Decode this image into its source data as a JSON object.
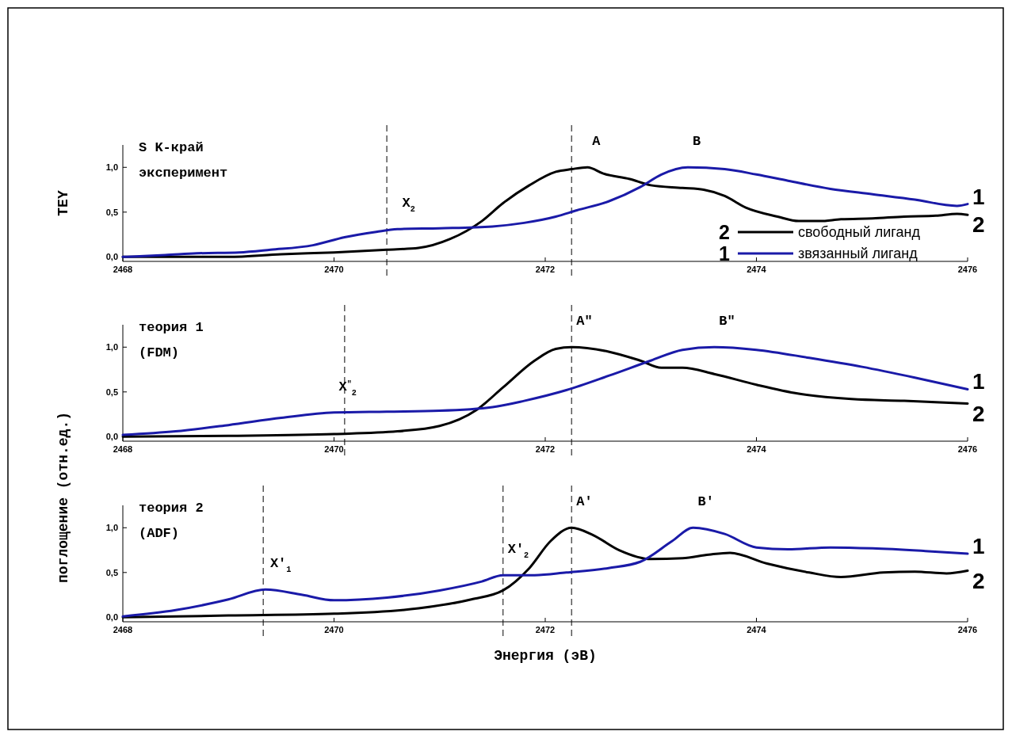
{
  "chart_data": [
    {
      "type": "line",
      "title": "S K-край",
      "subtitle": "эксперимент",
      "ylabel": "TEY",
      "xlim": [
        2468,
        2476
      ],
      "xticks": [
        2468,
        2470,
        2472,
        2474,
        2476
      ],
      "ylim": [
        -0.05,
        1.25
      ],
      "yticks": [
        {
          "value": 0,
          "label": "0,0"
        },
        {
          "value": 0.5,
          "label": "0,5"
        },
        {
          "value": 1,
          "label": "1,0"
        }
      ],
      "legend": "bottom right",
      "line_style": "solid",
      "series": [
        {
          "name": "свободный лиганд",
          "color": "#000000",
          "x": [
            2468,
            2469,
            2469.5,
            2470,
            2470.5,
            2470.8,
            2471.1,
            2471.4,
            2471.6,
            2471.85,
            2472.1,
            2472.25,
            2472.4,
            2472.55,
            2472.8,
            2473,
            2473.3,
            2473.5,
            2473.7,
            2473.9,
            2474.2,
            2474.4,
            2474.6,
            2474.8,
            2475.1,
            2475.4,
            2475.7,
            2475.9,
            2476
          ],
          "values": [
            0,
            0,
            0.03,
            0.05,
            0.08,
            0.1,
            0.2,
            0.4,
            0.6,
            0.8,
            0.95,
            0.98,
            1,
            0.93,
            0.87,
            0.8,
            0.77,
            0.75,
            0.68,
            0.55,
            0.45,
            0.4,
            0.4,
            0.42,
            0.43,
            0.45,
            0.46,
            0.48,
            0.47
          ]
        },
        {
          "name": "звязанный лиганд",
          "color": "#1a1aa8",
          "x": [
            2468,
            2468.4,
            2468.7,
            2469.1,
            2469.4,
            2469.8,
            2470.1,
            2470.4,
            2470.6,
            2471,
            2471.5,
            2471.8,
            2472.1,
            2472.3,
            2472.6,
            2472.9,
            2473.1,
            2473.35,
            2473.7,
            2474,
            2474.3,
            2474.7,
            2475.1,
            2475.5,
            2475.9,
            2476
          ],
          "values": [
            0,
            0.02,
            0.04,
            0.05,
            0.08,
            0.13,
            0.22,
            0.28,
            0.31,
            0.32,
            0.34,
            0.38,
            0.45,
            0.52,
            0.62,
            0.78,
            0.92,
            1,
            0.98,
            0.92,
            0.85,
            0.76,
            0.7,
            0.64,
            0.57,
            0.59
          ]
        }
      ],
      "ref_lines": [
        {
          "axis": "x",
          "value": 2472.25,
          "color": "#555555",
          "line_style": "dashed"
        },
        {
          "axis": "x",
          "value": 2470.5,
          "color": "#555555",
          "line_style": "dashed"
        }
      ],
      "annotations": [
        "2",
        "1",
        {
          "text": "A",
          "x": 2472.4,
          "y": 1
        },
        {
          "text": "B",
          "x": 2473.35,
          "y": 1
        },
        {
          "text": "X$_{2}$",
          "x": 2470.6,
          "y": 0.31
        },
        {
          "text": "1",
          "x": 2476,
          "y": 0.59
        },
        {
          "text": "2",
          "x": 2476,
          "y": 0.47
        }
      ]
    },
    {
      "type": "line",
      "title": "теория 1",
      "subtitle": "(FDM)",
      "xlim": [
        2468,
        2476
      ],
      "xticks": [
        2468,
        2470,
        2472,
        2474,
        2476
      ],
      "ylim": [
        -0.05,
        1.25
      ],
      "yticks": [
        {
          "value": 0,
          "label": "0,0"
        },
        {
          "value": 0.5,
          "label": "0,5"
        },
        {
          "value": 1,
          "label": "1,0"
        }
      ],
      "line_style": "solid",
      "series": [
        {
          "color": "#000000",
          "x": [
            2468,
            2469,
            2470,
            2470.6,
            2471,
            2471.35,
            2471.6,
            2471.9,
            2472.1,
            2472.25,
            2472.6,
            2472.9,
            2473.1,
            2473.3,
            2473.6,
            2474,
            2474.4,
            2474.9,
            2475.4,
            2476
          ],
          "values": [
            0,
            0.01,
            0.03,
            0.06,
            0.12,
            0.3,
            0.55,
            0.85,
            0.98,
            1,
            0.95,
            0.85,
            0.77,
            0.77,
            0.7,
            0.58,
            0.48,
            0.42,
            0.4,
            0.37
          ]
        },
        {
          "color": "#1a1aa8",
          "x": [
            2468,
            2468.5,
            2469,
            2469.5,
            2470,
            2470.5,
            2471,
            2471.5,
            2471.8,
            2472.2,
            2472.6,
            2473,
            2473.3,
            2473.6,
            2474,
            2474.5,
            2475,
            2475.5,
            2476
          ],
          "values": [
            0.02,
            0.06,
            0.13,
            0.21,
            0.27,
            0.28,
            0.29,
            0.33,
            0.4,
            0.52,
            0.68,
            0.85,
            0.97,
            1,
            0.97,
            0.88,
            0.78,
            0.66,
            0.53
          ]
        }
      ],
      "ref_lines": [
        {
          "axis": "x",
          "value": 2472.25,
          "color": "#555555",
          "line_style": "dashed"
        },
        {
          "axis": "x",
          "value": 2470.1,
          "color": "#555555",
          "line_style": "dashed"
        }
      ],
      "annotations": [
        {
          "text": "A\"",
          "x": 2472.25,
          "y": 1
        },
        {
          "text": "B\"",
          "x": 2473.6,
          "y": 1
        },
        {
          "text": "X$^{\"}$$_{2}$",
          "x": 2470,
          "y": 0.27
        },
        {
          "text": "1",
          "x": 2476,
          "y": 0.53
        },
        {
          "text": "2",
          "x": 2476,
          "y": 0.37
        }
      ]
    },
    {
      "type": "line",
      "title": "теория 2",
      "subtitle": "(ADF)",
      "xlabel": "Энергия (эВ)",
      "ylabel": "поглощение (отн.ед.)",
      "xlim": [
        2468,
        2476
      ],
      "xticks": [
        2468,
        2470,
        2472,
        2474,
        2476
      ],
      "ylim": [
        -0.05,
        1.25
      ],
      "yticks": [
        {
          "value": 0,
          "label": "0,0"
        },
        {
          "value": 0.5,
          "label": "0,5"
        },
        {
          "value": 1,
          "label": "1,0"
        }
      ],
      "line_style": "solid",
      "series": [
        {
          "color": "#000000",
          "x": [
            2468,
            2469,
            2470,
            2470.8,
            2471.3,
            2471.6,
            2471.85,
            2472.05,
            2472.25,
            2472.45,
            2472.7,
            2473,
            2473.3,
            2473.55,
            2473.75,
            2474.1,
            2474.5,
            2474.8,
            2475.2,
            2475.5,
            2475.8,
            2476
          ],
          "values": [
            0,
            0.02,
            0.04,
            0.1,
            0.2,
            0.3,
            0.55,
            0.85,
            1,
            0.92,
            0.75,
            0.65,
            0.66,
            0.7,
            0.72,
            0.6,
            0.5,
            0.45,
            0.5,
            0.51,
            0.49,
            0.52
          ]
        },
        {
          "color": "#1a1aa8",
          "x": [
            2468,
            2468.5,
            2469,
            2469.35,
            2469.7,
            2470,
            2470.5,
            2471,
            2471.4,
            2471.6,
            2471.9,
            2472.2,
            2472.6,
            2472.9,
            2473.2,
            2473.4,
            2473.7,
            2474,
            2474.3,
            2474.7,
            2475.1,
            2475.6,
            2476
          ],
          "values": [
            0.01,
            0.08,
            0.2,
            0.31,
            0.25,
            0.19,
            0.22,
            0.3,
            0.4,
            0.47,
            0.47,
            0.5,
            0.55,
            0.62,
            0.85,
            1,
            0.93,
            0.78,
            0.76,
            0.78,
            0.77,
            0.74,
            0.71
          ]
        }
      ],
      "ref_lines": [
        {
          "axis": "x",
          "value": 2472.25,
          "color": "#555555",
          "line_style": "dashed"
        },
        {
          "axis": "x",
          "value": 2469.33,
          "color": "#555555",
          "line_style": "dashed"
        },
        {
          "axis": "x",
          "value": 2471.6,
          "color": "#555555",
          "line_style": "dashed"
        }
      ],
      "annotations": [
        {
          "text": "A'",
          "x": 2472.25,
          "y": 1
        },
        {
          "text": "B'",
          "x": 2473.4,
          "y": 1
        },
        {
          "text": "X'$_{1}$",
          "x": 2469.35,
          "y": 0.31
        },
        {
          "text": "X'$_{2}$",
          "x": 2471.6,
          "y": 0.47
        },
        {
          "text": "1",
          "x": 2476,
          "y": 0.71
        },
        {
          "text": "2",
          "x": 2476,
          "y": 0.52
        }
      ]
    }
  ]
}
